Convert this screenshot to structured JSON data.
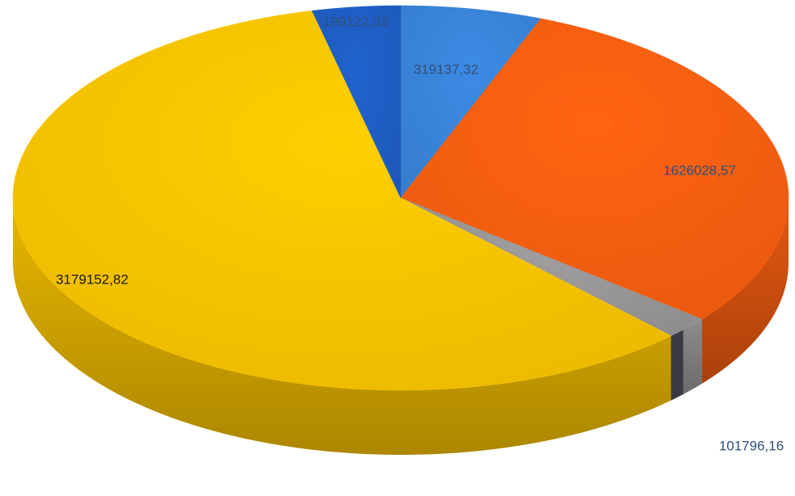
{
  "chart_data": {
    "type": "pie",
    "title": "",
    "style": "3d",
    "slices": [
      {
        "label": "319137,32",
        "value": 319137.32,
        "color": "#3a86dc"
      },
      {
        "label": "1626028,57",
        "value": 1626028.57,
        "color": "#fa6010"
      },
      {
        "label": "101796,16",
        "value": 101796.16,
        "color": "#9a9898"
      },
      {
        "label": "3179152,82",
        "value": 3179152.82,
        "color": "#fdc700"
      },
      {
        "label": "199122,33",
        "value": 199122.33,
        "color": "#1f5fc6"
      }
    ],
    "label_colors": {
      "default": "#2f4f7a",
      "on_yellow": "#1a1a1a"
    }
  }
}
